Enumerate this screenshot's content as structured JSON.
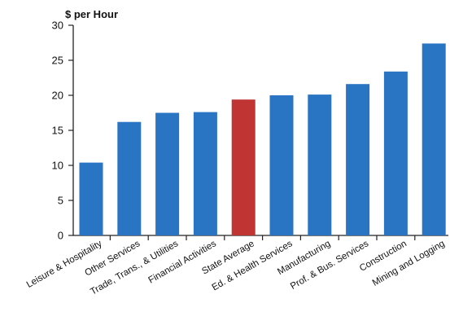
{
  "chart_data": {
    "type": "bar",
    "title": "",
    "xlabel": "",
    "ylabel": "$ per Hour",
    "ylim": [
      0,
      30
    ],
    "yticks": [
      0,
      5,
      10,
      15,
      20,
      25,
      30
    ],
    "grid": false,
    "categories": [
      "Leisure & Hospitality",
      "Other Services",
      "Trade, Trans., & Utilities",
      "Financial Activities",
      "State Average",
      "Ed. & Health Services",
      "Manufacturing",
      "Prof. & Bus. Services",
      "Construction",
      "Mining and Logging"
    ],
    "values": [
      10.4,
      16.2,
      17.5,
      17.6,
      19.4,
      20.0,
      20.1,
      21.6,
      23.4,
      27.4
    ],
    "colors": {
      "default": "#2a74c4",
      "highlight": "#c03434"
    },
    "highlight_category": "State Average"
  }
}
